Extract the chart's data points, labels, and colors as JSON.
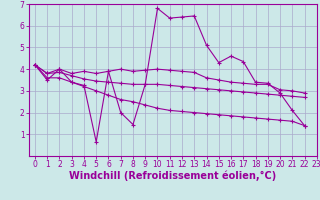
{
  "bg_color": "#cce8e8",
  "line_color": "#990099",
  "grid_color": "#aaaacc",
  "xlabel": "Windchill (Refroidissement éolien,°C)",
  "xlabel_fontsize": 7,
  "tick_fontsize": 5.5,
  "xlim": [
    -0.5,
    23
  ],
  "ylim": [
    0,
    7
  ],
  "x_ticks": [
    0,
    1,
    2,
    3,
    4,
    5,
    6,
    7,
    8,
    9,
    10,
    11,
    12,
    13,
    14,
    15,
    16,
    17,
    18,
    19,
    20,
    21,
    22,
    23
  ],
  "y_ticks": [
    1,
    2,
    3,
    4,
    5,
    6,
    7
  ],
  "series": [
    [
      4.2,
      3.5,
      4.0,
      3.4,
      3.25,
      0.65,
      3.9,
      2.0,
      1.45,
      3.3,
      6.8,
      6.35,
      6.4,
      6.45,
      5.1,
      4.3,
      4.6,
      4.35,
      3.4,
      3.35,
      2.9,
      2.1,
      1.4
    ],
    [
      4.2,
      3.8,
      4.0,
      3.8,
      3.9,
      3.8,
      3.9,
      4.0,
      3.9,
      3.95,
      4.0,
      3.95,
      3.9,
      3.85,
      3.6,
      3.5,
      3.4,
      3.35,
      3.3,
      3.3,
      3.05,
      3.0,
      2.9
    ],
    [
      4.2,
      3.8,
      3.85,
      3.7,
      3.55,
      3.45,
      3.4,
      3.35,
      3.3,
      3.3,
      3.3,
      3.25,
      3.2,
      3.15,
      3.1,
      3.05,
      3.0,
      2.95,
      2.9,
      2.85,
      2.8,
      2.75,
      2.7
    ],
    [
      4.2,
      3.6,
      3.6,
      3.4,
      3.2,
      3.0,
      2.8,
      2.6,
      2.5,
      2.35,
      2.2,
      2.1,
      2.05,
      2.0,
      1.95,
      1.9,
      1.85,
      1.8,
      1.75,
      1.7,
      1.65,
      1.6,
      1.4
    ]
  ]
}
